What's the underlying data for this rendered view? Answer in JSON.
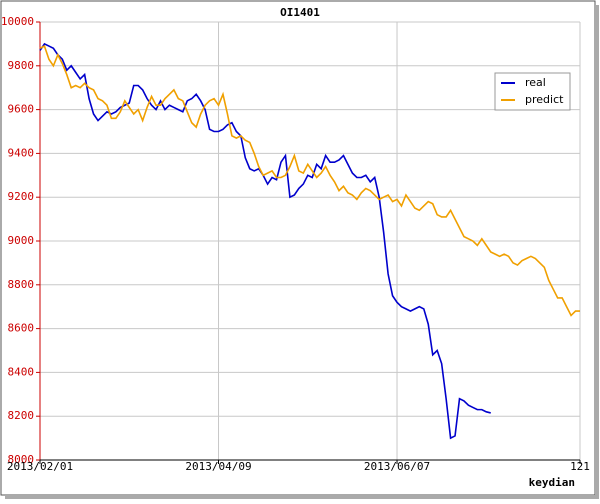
{
  "chart_data": {
    "type": "line",
    "title": "OI1401",
    "x_label": "keydian",
    "x": [
      0,
      1,
      2,
      3,
      4,
      5,
      6,
      7,
      8,
      9,
      10,
      11,
      12,
      13,
      14,
      15,
      16,
      17,
      18,
      19,
      20,
      21,
      22,
      23,
      24,
      25,
      26,
      27,
      28,
      29,
      30,
      31,
      32,
      33,
      34,
      35,
      36,
      37,
      38,
      39,
      40,
      41,
      42,
      43,
      44,
      45,
      46,
      47,
      48,
      49,
      50,
      51,
      52,
      53,
      54,
      55,
      56,
      57,
      58,
      59,
      60,
      61,
      62,
      63,
      64,
      65,
      66,
      67,
      68,
      69,
      70,
      71,
      72,
      73,
      74,
      75,
      76,
      77,
      78,
      79,
      80,
      81,
      82,
      83,
      84,
      85,
      86,
      87,
      88,
      89,
      90,
      91,
      92,
      93,
      94,
      95,
      96,
      97,
      98,
      99,
      100,
      101,
      102,
      103,
      104,
      105,
      106,
      107,
      108,
      109,
      110,
      111,
      112,
      113,
      114,
      115,
      116,
      117,
      118,
      119,
      120,
      121
    ],
    "series": [
      {
        "name": "real",
        "color": "#0000cc",
        "values": [
          9870,
          9900,
          9890,
          9880,
          9850,
          9830,
          9780,
          9800,
          9770,
          9740,
          9760,
          9650,
          9580,
          9550,
          9570,
          9590,
          9580,
          9590,
          9610,
          9620,
          9630,
          9710,
          9710,
          9690,
          9650,
          9620,
          9600,
          9640,
          9600,
          9620,
          9610,
          9600,
          9590,
          9640,
          9650,
          9670,
          9640,
          9600,
          9510,
          9500,
          9500,
          9510,
          9530,
          9540,
          9500,
          9480,
          9380,
          9330,
          9320,
          9330,
          9300,
          9260,
          9290,
          9280,
          9360,
          9390,
          9200,
          9210,
          9240,
          9260,
          9300,
          9290,
          9350,
          9330,
          9390,
          9360,
          9360,
          9370,
          9390,
          9350,
          9310,
          9290,
          9290,
          9300,
          9270,
          9290,
          9200,
          9040,
          8850,
          8750,
          8720,
          8700,
          8690,
          8680,
          8690,
          8700,
          8690,
          8620,
          8480,
          8500,
          8440,
          8280,
          8100,
          8110,
          8280,
          8270,
          8250,
          8240,
          8230,
          8230,
          8220,
          8215,
          null,
          null,
          null,
          null,
          null,
          null,
          null,
          null,
          null,
          null,
          null,
          null,
          null,
          null,
          null,
          null,
          null,
          null,
          null,
          null
        ]
      },
      {
        "name": "predict",
        "color": "#f0a000",
        "values": [
          9880,
          9890,
          9830,
          9800,
          9850,
          9810,
          9760,
          9700,
          9710,
          9700,
          9720,
          9700,
          9690,
          9650,
          9640,
          9620,
          9560,
          9560,
          9590,
          9640,
          9610,
          9580,
          9600,
          9550,
          9610,
          9660,
          9620,
          9620,
          9650,
          9670,
          9690,
          9650,
          9640,
          9590,
          9540,
          9520,
          9580,
          9620,
          9640,
          9650,
          9620,
          9670,
          9580,
          9480,
          9470,
          9480,
          9460,
          9450,
          9400,
          9340,
          9300,
          9310,
          9320,
          9290,
          9290,
          9300,
          9340,
          9390,
          9320,
          9310,
          9350,
          9320,
          9290,
          9310,
          9340,
          9300,
          9270,
          9230,
          9250,
          9220,
          9210,
          9190,
          9220,
          9240,
          9230,
          9210,
          9190,
          9200,
          9210,
          9180,
          9190,
          9160,
          9210,
          9180,
          9150,
          9140,
          9160,
          9180,
          9170,
          9120,
          9110,
          9110,
          9140,
          9100,
          9060,
          9020,
          9010,
          9000,
          8980,
          9010,
          8980,
          8950,
          8940,
          8930,
          8940,
          8930,
          8900,
          8890,
          8910,
          8920,
          8930,
          8920,
          8900,
          8880,
          8820,
          8780,
          8740,
          8740,
          8700,
          8660,
          8680,
          8680
        ]
      }
    ],
    "xlim": [
      0,
      121
    ],
    "xticks": [
      {
        "value": 0,
        "label": "2013/02/01"
      },
      {
        "value": 40,
        "label": "2013/04/09"
      },
      {
        "value": 80,
        "label": "2013/06/07"
      },
      121
    ],
    "ylim": [
      8000,
      10000
    ],
    "yticks": [
      8000,
      8200,
      8400,
      8600,
      8800,
      9000,
      9200,
      9400,
      9600,
      9800,
      10000
    ],
    "grid": true,
    "legend": "upper-right"
  }
}
